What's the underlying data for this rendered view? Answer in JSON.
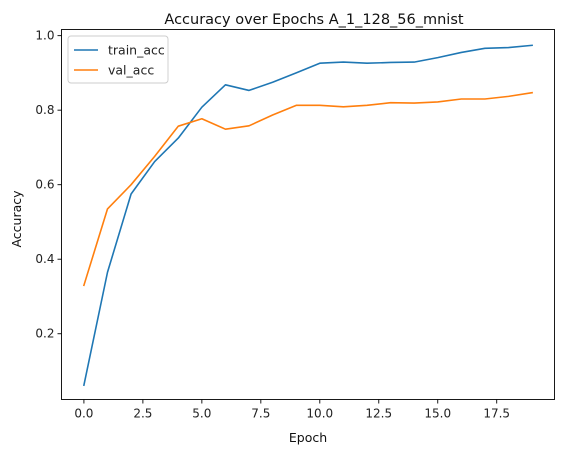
{
  "chart_data": {
    "type": "line",
    "title": "Accuracy over Epochs A_1_128_56_mnist",
    "xlabel": "Epoch",
    "ylabel": "Accuracy",
    "x": [
      0,
      1,
      2,
      3,
      4,
      5,
      6,
      7,
      8,
      9,
      10,
      11,
      12,
      13,
      14,
      15,
      16,
      17,
      18,
      19
    ],
    "xlim": [
      -0.95,
      19.95
    ],
    "ylim": [
      0.0235,
      1.0165
    ],
    "xticks": [
      0.0,
      2.5,
      5.0,
      7.5,
      10.0,
      12.5,
      15.0,
      17.5
    ],
    "xtick_labels": [
      "0.0",
      "2.5",
      "5.0",
      "7.5",
      "10.0",
      "12.5",
      "15.0",
      "17.5"
    ],
    "yticks": [
      0.2,
      0.4,
      0.6,
      0.8,
      1.0
    ],
    "ytick_labels": [
      "0.2",
      "0.4",
      "0.6",
      "0.8",
      "1.0"
    ],
    "grid": false,
    "legend_position": "top-left",
    "series": [
      {
        "name": "train_acc",
        "color": "#1f77b4",
        "values": [
          0.062,
          0.365,
          0.575,
          0.662,
          0.725,
          0.808,
          0.868,
          0.853,
          0.875,
          0.9,
          0.926,
          0.929,
          0.926,
          0.928,
          0.929,
          0.941,
          0.955,
          0.966,
          0.968,
          0.974
        ]
      },
      {
        "name": "val_acc",
        "color": "#ff7f0e",
        "values": [
          0.33,
          0.535,
          0.6,
          0.676,
          0.757,
          0.777,
          0.749,
          0.758,
          0.787,
          0.813,
          0.813,
          0.809,
          0.813,
          0.82,
          0.819,
          0.822,
          0.83,
          0.83,
          0.837,
          0.847
        ]
      }
    ]
  }
}
